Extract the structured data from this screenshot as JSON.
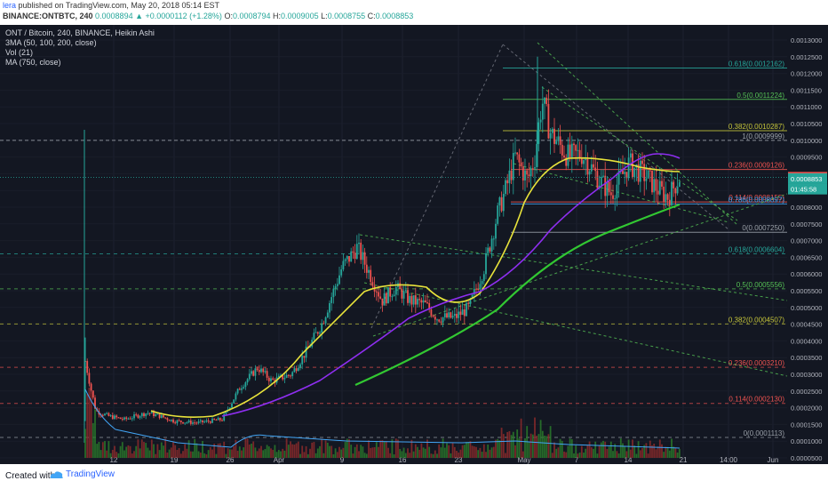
{
  "header": {
    "publisher": "lera",
    "published_text": " published on TradingView.com, May 20, 2018 05:14 EST",
    "symbol": "BINANCE:ONTBTC, 240",
    "ohlc": {
      "last": "0.0008894",
      "change": "+0.0000112 (+1.28%)",
      "o_label": "O:",
      "o": "0.0008794",
      "h_label": "H:",
      "h": "0.0009005",
      "l_label": "L:",
      "l": "0.0008755",
      "c_label": "C:",
      "c": "0.0008853"
    }
  },
  "legend": {
    "title": "ONT / Bitcoin, 240, BINANCE, Heikin Ashi",
    "ind1": "3MA (50, 100, 200, close)",
    "ind2": "Vol (21)",
    "ind3": "MA (750, close)"
  },
  "footer": {
    "created_with": "Created with",
    "brand": "TradingView"
  },
  "colors": {
    "background": "#131722",
    "up": "#26a69a",
    "down": "#ef5350",
    "ma50": "#e8e33b",
    "ma100": "#8e2ef0",
    "ma750": "#32c832",
    "fib_green": "#26a69a",
    "fib_yellow": "#c5c53a",
    "fib_red": "#ef5350"
  },
  "chart_data": {
    "type": "candlestick",
    "title": "ONT / Bitcoin, 240, BINANCE, Heikin Ashi",
    "x_ticks": [
      "12",
      "19",
      "26",
      "Apr",
      "9",
      "16",
      "23",
      "May",
      "7",
      "14",
      "21",
      "14:00",
      "Jun"
    ],
    "y_ticks": [
      "0.0013000",
      "0.0012500",
      "0.0012000",
      "0.0011500",
      "0.0011000",
      "0.0010500",
      "0.0010000",
      "0.0009500",
      "0.0009000",
      "0.0008500",
      "0.0008000",
      "0.0007500",
      "0.0007000",
      "0.0006500",
      "0.0006000",
      "0.0005500",
      "0.0005000",
      "0.0004500",
      "0.0004000",
      "0.0003500",
      "0.0003000",
      "0.0002500",
      "0.0002000",
      "0.0001500",
      "0.0001000",
      "0.0000500"
    ],
    "ylim": [
      4e-05,
      0.00132
    ],
    "price_labels": [
      {
        "text": "0.0008894",
        "value": 0.0008894,
        "color": "#ef5350"
      },
      {
        "text": "0.0008853",
        "value": 0.0008853,
        "color": "#26a69a"
      },
      {
        "text": "01:45:58",
        "value": 0.000862,
        "color": "#26a69a"
      }
    ],
    "close_series": [
      [
        "Mar 8",
        0.00034
      ],
      [
        "Mar 9",
        0.00026
      ],
      [
        "Mar 10",
        0.00019
      ],
      [
        "Mar 12",
        0.000175
      ],
      [
        "Mar 14",
        0.000165
      ],
      [
        "Mar 16",
        0.000185
      ],
      [
        "Mar 18",
        0.000175
      ],
      [
        "Mar 19",
        0.00016
      ],
      [
        "Mar 22",
        0.000155
      ],
      [
        "Mar 25",
        0.000165
      ],
      [
        "Mar 27",
        0.00026
      ],
      [
        "Mar 29",
        0.00032
      ],
      [
        "Mar 31",
        0.00028
      ],
      [
        "Apr 3",
        0.0003
      ],
      [
        "Apr 5",
        0.00037
      ],
      [
        "Apr 7",
        0.00045
      ],
      [
        "Apr 9",
        0.00062
      ],
      [
        "Apr 10",
        0.00068
      ],
      [
        "Apr 12",
        0.00058
      ],
      [
        "Apr 13",
        0.00052
      ],
      [
        "Apr 15",
        0.00056
      ],
      [
        "Apr 17",
        0.00052
      ],
      [
        "Apr 19",
        0.00051
      ],
      [
        "Apr 21",
        0.00047
      ],
      [
        "Apr 23",
        0.00047
      ],
      [
        "Apr 25",
        0.0005
      ],
      [
        "Apr 27",
        0.00062
      ],
      [
        "Apr 28",
        0.00078
      ],
      [
        "Apr 29",
        0.00086
      ],
      [
        "Apr 30",
        0.00095
      ],
      [
        "May 2",
        0.00088
      ],
      [
        "May 3",
        0.00095
      ],
      [
        "May 4",
        0.00112
      ],
      [
        "May 5",
        0.00102
      ],
      [
        "May 7",
        0.00095
      ],
      [
        "May 9",
        0.00096
      ],
      [
        "May 11",
        0.00088
      ],
      [
        "May 12",
        0.00084
      ],
      [
        "May 14",
        0.00093
      ],
      [
        "May 16",
        0.00089
      ],
      [
        "May 17",
        0.00086
      ],
      [
        "May 18",
        0.00083
      ],
      [
        "May 20",
        0.00089
      ]
    ],
    "fib_levels_upper": [
      {
        "label": "0.618(0.0012162)",
        "value": 0.0012162,
        "color": "#26a69a"
      },
      {
        "label": "0.5(0.0011224)",
        "value": 0.0011224,
        "color": "#55c055"
      },
      {
        "label": "0.382(0.0010287)",
        "value": 0.0010287,
        "color": "#c5c53a"
      },
      {
        "label": "1(0.0009999)",
        "value": 0.0009999,
        "color": "#9aa0a8"
      },
      {
        "label": "0.236(0.0009126)",
        "value": 0.0009126,
        "color": "#ef5350"
      },
      {
        "label": "0.114(0.0008155)",
        "value": 0.0008155,
        "color": "#ef5350"
      },
      {
        "label": "0.786(0.0008097)",
        "value": 0.0008097,
        "color": "#42a5f5"
      },
      {
        "label": "0(0.0007250)",
        "value": 0.000725,
        "color": "#9aa0a8"
      }
    ],
    "fib_levels_lower": [
      {
        "label": "0.618(0.0006604)",
        "value": 0.0006604,
        "color": "#26a69a"
      },
      {
        "label": "0.5(0.0005556)",
        "value": 0.0005556,
        "color": "#55c055"
      },
      {
        "label": "0.382(0.0004507)",
        "value": 0.0004507,
        "color": "#c5c53a"
      },
      {
        "label": "0.236(0.0003210)",
        "value": 0.000321,
        "color": "#ef5350"
      },
      {
        "label": "0.114(0.0002130)",
        "value": 0.000213,
        "color": "#ef5350"
      },
      {
        "label": "0(0.0001113)",
        "value": 0.0001113,
        "color": "#9aa0a8"
      }
    ]
  }
}
